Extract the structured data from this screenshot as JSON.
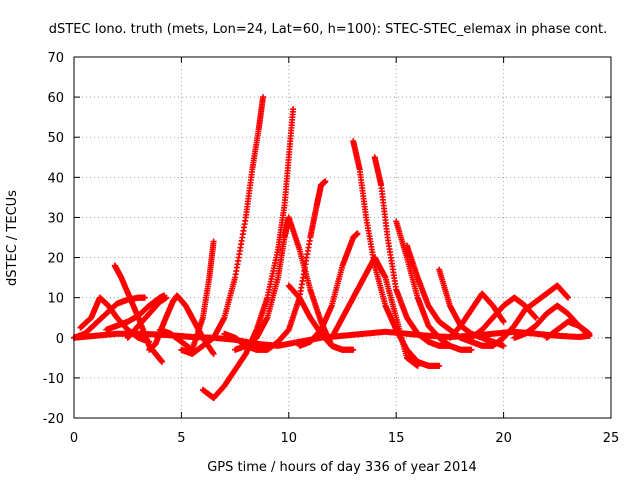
{
  "chart_data": {
    "type": "scatter",
    "title": "dSTEC Iono. truth (mets, Lon=24, Lat=60, h=100): STEC-STEC_elemax in phase cont.",
    "xlabel": "GPS time / hours of day 336 of year 2014",
    "ylabel": "dSTEC  / TECUs",
    "xlim": [
      0,
      25
    ],
    "ylim": [
      -20,
      70
    ],
    "xticks": [
      0,
      5,
      10,
      15,
      20,
      25
    ],
    "yticks": [
      -20,
      -10,
      0,
      10,
      20,
      30,
      40,
      50,
      60,
      70
    ],
    "grid": true,
    "marker": "+",
    "series_color": "#ff0000",
    "series": [
      {
        "x": [
          0.0,
          1.0,
          2.0,
          3.0,
          4.0,
          4.8,
          5.5,
          6.5,
          7.5,
          8.5,
          9.5,
          10.5,
          11.5,
          12.5,
          13.5,
          14.5,
          15.5,
          16.5,
          17.5,
          18.5,
          19.5,
          20.5,
          21.5,
          22.5,
          23.5,
          24.0
        ],
        "y": [
          0.0,
          0.5,
          1.0,
          1.0,
          0.8,
          0.5,
          0.2,
          0.0,
          -0.5,
          -1.5,
          -2.0,
          -1.0,
          0.0,
          0.5,
          1.0,
          1.5,
          1.0,
          0.5,
          0.2,
          0.5,
          1.0,
          1.5,
          1.0,
          0.5,
          0.2,
          0.5
        ]
      },
      {
        "x": [
          0.3,
          0.8,
          1.2,
          1.6,
          2.0,
          2.5,
          3.0,
          3.5
        ],
        "y": [
          2.5,
          5.0,
          10.0,
          8.0,
          5.0,
          2.0,
          0.0,
          -1.0
        ]
      },
      {
        "x": [
          0.0,
          0.5,
          1.0,
          1.5,
          2.0,
          2.5,
          3.0,
          3.3
        ],
        "y": [
          0.0,
          1.0,
          3.5,
          6.0,
          8.5,
          9.5,
          10.0,
          10.0
        ]
      },
      {
        "x": [
          1.9,
          2.2,
          2.6,
          3.0,
          3.5,
          3.8,
          4.1
        ],
        "y": [
          18.0,
          15.0,
          10.0,
          5.0,
          -2.0,
          -4.0,
          -6.0
        ]
      },
      {
        "x": [
          1.5,
          2.0,
          2.5,
          3.0,
          3.5,
          4.0,
          4.2
        ],
        "y": [
          2.0,
          3.0,
          4.0,
          5.5,
          8.0,
          10.0,
          10.5
        ]
      },
      {
        "x": [
          3.5,
          3.8,
          4.2,
          4.6,
          4.8,
          5.2,
          5.6,
          6.0,
          6.5
        ],
        "y": [
          -3.0,
          -1.5,
          4.0,
          9.0,
          10.5,
          8.0,
          4.0,
          0.0,
          -4.0
        ]
      },
      {
        "x": [
          2.5,
          3.0,
          3.5,
          4.0,
          4.3
        ],
        "y": [
          0.0,
          3.0,
          6.0,
          9.0,
          10.0
        ]
      },
      {
        "x": [
          4.0,
          4.5,
          5.0,
          5.5,
          6.0,
          6.3,
          6.5
        ],
        "y": [
          2.0,
          1.0,
          -1.0,
          -3.0,
          5.0,
          15.0,
          24.0
        ]
      },
      {
        "x": [
          5.0,
          5.5,
          6.0,
          6.5,
          7.0,
          7.5,
          8.0,
          8.3,
          8.6,
          8.8
        ],
        "y": [
          -3.0,
          -4.0,
          -2.0,
          0.0,
          5.0,
          15.0,
          30.0,
          42.0,
          52.0,
          60.0
        ]
      },
      {
        "x": [
          6.0,
          6.5,
          7.0,
          7.5,
          8.0,
          8.5,
          9.0,
          9.5,
          9.8,
          10.0,
          10.2
        ],
        "y": [
          -13.0,
          -15.0,
          -12.0,
          -8.0,
          -4.0,
          2.0,
          10.0,
          22.0,
          33.0,
          45.0,
          57.0
        ]
      },
      {
        "x": [
          7.0,
          7.5,
          8.0,
          8.5,
          9.0,
          9.5,
          10.0,
          10.5,
          11.0,
          11.3,
          11.5,
          11.7
        ],
        "y": [
          1.0,
          0.0,
          -2.0,
          -3.0,
          -3.0,
          -1.0,
          2.0,
          10.0,
          25.0,
          33.0,
          38.0,
          39.0
        ]
      },
      {
        "x": [
          7.5,
          8.0,
          8.5,
          9.0,
          9.5,
          9.8,
          10.0,
          10.5,
          11.0,
          11.5,
          12.0,
          12.5
        ],
        "y": [
          -3.0,
          -2.0,
          0.0,
          5.0,
          15.0,
          25.0,
          30.0,
          22.0,
          12.0,
          4.0,
          -2.0,
          -3.0
        ]
      },
      {
        "x": [
          10.0,
          10.5,
          11.0,
          11.5,
          12.0,
          12.5,
          13.0
        ],
        "y": [
          13.0,
          10.0,
          5.0,
          1.0,
          -2.0,
          -3.0,
          -3.0
        ]
      },
      {
        "x": [
          10.5,
          11.0,
          11.5,
          12.0,
          12.5,
          13.0,
          13.2
        ],
        "y": [
          -2.0,
          -1.0,
          2.0,
          8.0,
          18.0,
          25.0,
          26.0
        ]
      },
      {
        "x": [
          12.0,
          12.5,
          13.0,
          13.5,
          14.0,
          14.5,
          15.0,
          15.5,
          16.0
        ],
        "y": [
          0.0,
          5.0,
          10.0,
          15.0,
          20.0,
          15.0,
          5.0,
          -5.0,
          -7.0
        ]
      },
      {
        "x": [
          13.0,
          13.3,
          13.6,
          14.0,
          14.5,
          15.0,
          15.5,
          16.0,
          16.5,
          17.0
        ],
        "y": [
          49.0,
          42.0,
          30.0,
          18.0,
          8.0,
          2.0,
          -3.0,
          -6.0,
          -7.0,
          -7.0
        ]
      },
      {
        "x": [
          14.0,
          14.3,
          14.6,
          15.0,
          15.5,
          16.0,
          16.5,
          17.0,
          17.5
        ],
        "y": [
          45.0,
          38.0,
          25.0,
          12.0,
          5.0,
          1.0,
          -1.0,
          -2.0,
          -2.0
        ]
      },
      {
        "x": [
          15.0,
          15.5,
          16.0,
          16.5,
          17.0,
          17.5,
          18.0,
          18.5
        ],
        "y": [
          29.0,
          20.0,
          10.0,
          3.0,
          0.0,
          -2.0,
          -3.0,
          -3.0
        ]
      },
      {
        "x": [
          15.5,
          16.0,
          16.5,
          17.0,
          17.5,
          18.0,
          18.5,
          19.0,
          19.5
        ],
        "y": [
          23.0,
          15.0,
          8.0,
          4.0,
          2.0,
          0.0,
          -1.0,
          -2.0,
          -2.0
        ]
      },
      {
        "x": [
          17.0,
          17.5,
          18.0,
          18.5,
          19.0,
          19.5,
          20.0
        ],
        "y": [
          17.0,
          8.0,
          3.0,
          1.0,
          0.0,
          -1.0,
          -2.0
        ]
      },
      {
        "x": [
          17.5,
          18.0,
          18.5,
          19.0,
          19.5,
          20.0
        ],
        "y": [
          0.0,
          3.0,
          7.0,
          11.0,
          8.0,
          4.0
        ]
      },
      {
        "x": [
          18.5,
          19.0,
          19.5,
          20.0,
          20.5,
          21.0,
          21.5
        ],
        "y": [
          0.0,
          2.0,
          5.0,
          8.0,
          10.0,
          8.0,
          5.0
        ]
      },
      {
        "x": [
          19.5,
          20.0,
          20.5,
          21.0,
          21.5,
          22.0,
          22.5,
          23.0
        ],
        "y": [
          -2.0,
          0.0,
          3.0,
          7.0,
          9.0,
          11.0,
          13.0,
          10.0
        ]
      },
      {
        "x": [
          20.5,
          21.0,
          21.5,
          22.0,
          22.5,
          23.0,
          23.5,
          24.0
        ],
        "y": [
          0.0,
          1.0,
          3.0,
          6.0,
          8.0,
          6.0,
          3.0,
          1.0
        ]
      },
      {
        "x": [
          22.0,
          22.5,
          23.0,
          23.5,
          24.0
        ],
        "y": [
          0.0,
          2.0,
          4.0,
          3.0,
          0.5
        ]
      }
    ]
  }
}
